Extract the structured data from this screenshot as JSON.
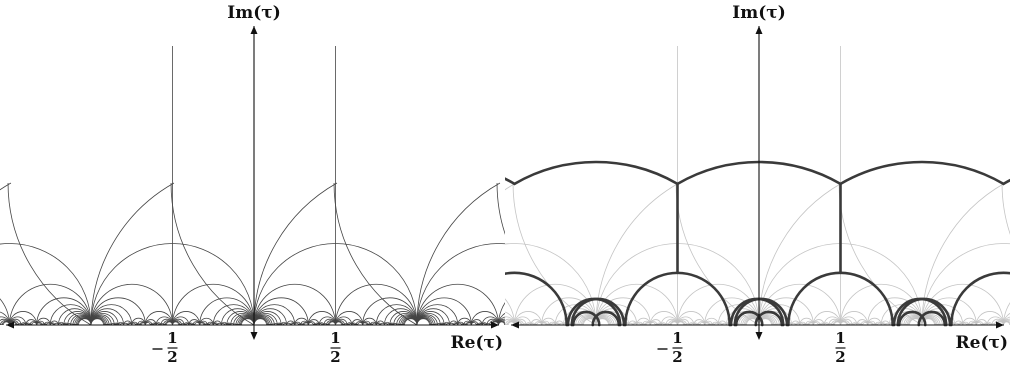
{
  "figures": [
    {
      "id": "left",
      "style": "uniform",
      "y_axis_label": "Im(τ)",
      "x_axis_label": "Re(τ)",
      "tick_labels": [
        {
          "value": -0.5,
          "minus": true,
          "num": "1",
          "den": "2"
        },
        {
          "value": 0.5,
          "minus": false,
          "num": "1",
          "den": "2"
        }
      ]
    },
    {
      "id": "right",
      "style": "fundamental-domain-highlighted",
      "y_axis_label": "Im(τ)",
      "x_axis_label": "Re(τ)",
      "tick_labels": [
        {
          "value": -0.5,
          "minus": true,
          "num": "1",
          "den": "2"
        },
        {
          "value": 0.5,
          "minus": false,
          "num": "1",
          "den": "2"
        }
      ]
    }
  ],
  "colors": {
    "line": "#444444",
    "light_line": "#c4c4c4",
    "bold_line": "#3a3a3a",
    "axis": "#111111"
  },
  "math": {
    "x_range": [
      -1.5,
      1.5
    ],
    "max_denominator": 13
  }
}
